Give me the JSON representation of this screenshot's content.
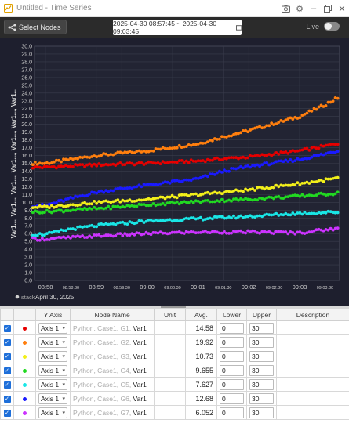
{
  "window": {
    "title": "Untitled - Time Series",
    "colors": {
      "accent": "#e0a000"
    }
  },
  "toolbar": {
    "select_nodes_label": "Select Nodes",
    "date_range": "2025-04-30 08:57:45 ~ 2025-04-30 09:03:45",
    "live_label": "Live",
    "live_on": false
  },
  "chart_data": {
    "type": "scatter",
    "ylabel": "Var1..., Var1..., Var1..., Var1..., Var1..., Var1..., Var1...",
    "ylim": [
      0,
      30
    ],
    "yticks": [
      "0.0",
      "1.0",
      "2.0",
      "3.0",
      "4.0",
      "5.0",
      "6.0",
      "7.0",
      "8.0",
      "9.0",
      "10.0",
      "11.0",
      "12.0",
      "13.0",
      "14.0",
      "15.0",
      "16.0",
      "17.0",
      "18.0",
      "19.0",
      "20.0",
      "21.0",
      "22.0",
      "23.0",
      "24.0",
      "25.0",
      "26.0",
      "27.0",
      "28.0",
      "29.0",
      "30.0"
    ],
    "xticks": [
      {
        "label": "08:58",
        "major": true
      },
      {
        "label": "08:58:30",
        "major": false
      },
      {
        "label": "08:59",
        "major": true
      },
      {
        "label": "08:59:30",
        "major": false
      },
      {
        "label": "09:00",
        "major": true
      },
      {
        "label": "09:00:30",
        "major": false
      },
      {
        "label": "09:01",
        "major": true
      },
      {
        "label": "09:01:30",
        "major": false
      },
      {
        "label": "09:02",
        "major": true
      },
      {
        "label": "09:02:30",
        "major": false
      },
      {
        "label": "09:03",
        "major": true
      },
      {
        "label": "09:03:30",
        "major": false
      }
    ],
    "x_range": [
      "08:57:45",
      "09:03:45"
    ],
    "grid": true,
    "legend": "bottom-left",
    "stack_label": "stack",
    "date_label": "April 30, 2025",
    "series": [
      {
        "color": "#ff7f0e",
        "points": [
          [
            0,
            15.0
          ],
          [
            0.5,
            15.5
          ],
          [
            1,
            16.0
          ],
          [
            2,
            16.6
          ],
          [
            3,
            17.5
          ],
          [
            3.5,
            18.4
          ],
          [
            4,
            19.2
          ],
          [
            5,
            21.0
          ],
          [
            5.5,
            22.5
          ],
          [
            6,
            24.3
          ],
          [
            6,
            26.0
          ]
        ]
      },
      {
        "color": "#e60000",
        "points": [
          [
            0,
            14.5
          ],
          [
            1,
            14.8
          ],
          [
            2,
            15.0
          ],
          [
            3,
            15.3
          ],
          [
            3.5,
            15.6
          ],
          [
            4,
            15.8
          ],
          [
            5,
            16.6
          ],
          [
            5.5,
            17.2
          ],
          [
            6,
            17.9
          ]
        ]
      },
      {
        "color": "#1a1aff",
        "points": [
          [
            0,
            9.6
          ],
          [
            0.5,
            10.5
          ],
          [
            1,
            11.3
          ],
          [
            2,
            12.2
          ],
          [
            3,
            13.0
          ],
          [
            3.5,
            14.0
          ],
          [
            4,
            14.6
          ],
          [
            5,
            15.5
          ],
          [
            5.5,
            16.2
          ],
          [
            6,
            17.0
          ]
        ]
      },
      {
        "color": "#f2ef1a",
        "points": [
          [
            0,
            9.4
          ],
          [
            1,
            10.0
          ],
          [
            2,
            10.4
          ],
          [
            3,
            11.0
          ],
          [
            4,
            11.6
          ],
          [
            5,
            12.4
          ],
          [
            6,
            13.3
          ]
        ]
      },
      {
        "color": "#21d921",
        "points": [
          [
            0,
            8.8
          ],
          [
            1,
            9.2
          ],
          [
            2,
            9.7
          ],
          [
            3,
            10.1
          ],
          [
            4,
            10.4
          ],
          [
            5,
            10.8
          ],
          [
            6,
            11.3
          ]
        ]
      },
      {
        "color": "#19e6e6",
        "points": [
          [
            0,
            5.9
          ],
          [
            0.5,
            6.6
          ],
          [
            1,
            7.0
          ],
          [
            2,
            7.6
          ],
          [
            3,
            7.9
          ],
          [
            4,
            8.2
          ],
          [
            5,
            8.6
          ],
          [
            6,
            8.8
          ]
        ]
      },
      {
        "color": "#cc33ff",
        "points": [
          [
            0,
            5.3
          ],
          [
            1,
            5.7
          ],
          [
            2,
            6.0
          ],
          [
            3,
            6.2
          ],
          [
            4,
            6.2
          ],
          [
            5,
            6.1
          ],
          [
            5.5,
            6.5
          ],
          [
            6,
            6.8
          ]
        ]
      }
    ]
  },
  "table": {
    "headers": [
      "",
      "",
      "Y Axis",
      "Node Name",
      "Unit",
      "Avg.",
      "Lower",
      "Upper",
      "Description"
    ],
    "rows": [
      {
        "checked": true,
        "color": "#e60000",
        "axis": "Axis 1",
        "path": "Python, Case1, G1, ",
        "var": "Var1",
        "unit": "",
        "avg": "14.58",
        "lower": "0",
        "upper": "30",
        "description": ""
      },
      {
        "checked": true,
        "color": "#ff7f0e",
        "axis": "Axis 1",
        "path": "Python, Case1, G2, ",
        "var": "Var1",
        "unit": "",
        "avg": "19.92",
        "lower": "0",
        "upper": "30",
        "description": ""
      },
      {
        "checked": true,
        "color": "#f2ef1a",
        "axis": "Axis 1",
        "path": "Python, Case1, G3, ",
        "var": "Var1",
        "unit": "",
        "avg": "10.73",
        "lower": "0",
        "upper": "30",
        "description": ""
      },
      {
        "checked": true,
        "color": "#21d921",
        "axis": "Axis 1",
        "path": "Python, Case1, G4, ",
        "var": "Var1",
        "unit": "",
        "avg": "9.655",
        "lower": "0",
        "upper": "30",
        "description": ""
      },
      {
        "checked": true,
        "color": "#19e6e6",
        "axis": "Axis 1",
        "path": "Python, Case1, G5, ",
        "var": "Var1",
        "unit": "",
        "avg": "7.627",
        "lower": "0",
        "upper": "30",
        "description": ""
      },
      {
        "checked": true,
        "color": "#1a1aff",
        "axis": "Axis 1",
        "path": "Python, Case1, G6, ",
        "var": "Var1",
        "unit": "",
        "avg": "12.68",
        "lower": "0",
        "upper": "30",
        "description": ""
      },
      {
        "checked": true,
        "color": "#cc33ff",
        "axis": "Axis 1",
        "path": "Python, Case1, G7, ",
        "var": "Var1",
        "unit": "",
        "avg": "6.052",
        "lower": "0",
        "upper": "30",
        "description": ""
      }
    ]
  }
}
